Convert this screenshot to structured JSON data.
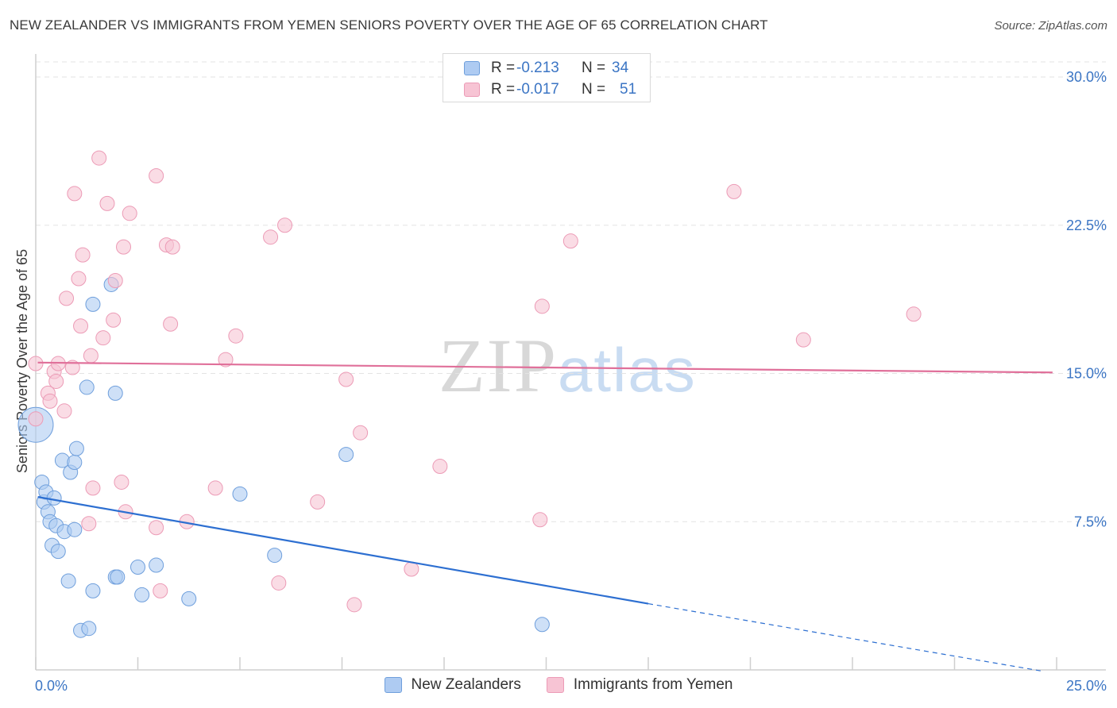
{
  "title": "NEW ZEALANDER VS IMMIGRANTS FROM YEMEN SENIORS POVERTY OVER THE AGE OF 65 CORRELATION CHART",
  "source": "Source: ZipAtlas.com",
  "watermark": {
    "zip": "ZIP",
    "atlas": "atlas"
  },
  "legend_top": {
    "rows": [
      {
        "r_label": "R =",
        "r_value": "-0.213",
        "n_label": "N =",
        "n_value": "34",
        "color": "#aecbf2"
      },
      {
        "r_label": "R =",
        "r_value": "-0.017",
        "n_label": "N =",
        "n_value": "51",
        "color": "#f7c4d4"
      }
    ]
  },
  "legend_bottom": [
    {
      "label": "New Zealanders",
      "color": "#aecbf2"
    },
    {
      "label": "Immigrants from Yemen",
      "color": "#f7c4d4"
    }
  ],
  "chart_data": {
    "type": "scatter",
    "title": "NEW ZEALANDER VS IMMIGRANTS FROM YEMEN SENIORS POVERTY OVER THE AGE OF 65 CORRELATION CHART",
    "xlabel": "",
    "ylabel": "Seniors Poverty Over the Age of 65",
    "xlim": [
      0,
      25
    ],
    "ylim": [
      0,
      30
    ],
    "x_tick_labels": [
      "0.0%",
      "25.0%"
    ],
    "y_tick_labels": [
      "7.5%",
      "15.0%",
      "22.5%",
      "30.0%"
    ],
    "y_ticks": [
      7.5,
      15,
      22.5,
      30
    ],
    "series": [
      {
        "name": "New Zealanders",
        "color": "#aecbf2",
        "stroke": "#6f9fdc",
        "line_color": "#2d6fd1",
        "trend": {
          "x0": 0.05,
          "y0": 8.75,
          "x1": 15.0,
          "y1": 3.35,
          "dash_to_x": 24.7,
          "dash_to_y": -0.08
        },
        "points": [
          [
            0.0,
            12.4,
            22
          ],
          [
            0.15,
            9.5,
            9
          ],
          [
            0.2,
            8.5,
            9
          ],
          [
            0.25,
            9.0,
            9
          ],
          [
            0.3,
            8.0,
            9
          ],
          [
            0.35,
            7.5,
            9
          ],
          [
            0.4,
            6.3,
            9
          ],
          [
            0.45,
            8.7,
            9
          ],
          [
            0.5,
            7.3,
            9
          ],
          [
            0.55,
            6.0,
            9
          ],
          [
            0.65,
            10.6,
            9
          ],
          [
            0.7,
            7.0,
            9
          ],
          [
            0.8,
            4.5,
            9
          ],
          [
            0.85,
            10.0,
            9
          ],
          [
            0.95,
            7.1,
            9
          ],
          [
            0.95,
            10.5,
            9
          ],
          [
            1.0,
            11.2,
            9
          ],
          [
            1.1,
            2.0,
            9
          ],
          [
            1.25,
            14.3,
            9
          ],
          [
            1.3,
            2.1,
            9
          ],
          [
            1.4,
            4.0,
            9
          ],
          [
            1.4,
            18.5,
            9
          ],
          [
            1.85,
            19.5,
            9
          ],
          [
            1.95,
            4.7,
            9
          ],
          [
            1.95,
            14.0,
            9
          ],
          [
            2.0,
            4.7,
            9
          ],
          [
            2.5,
            5.2,
            9
          ],
          [
            2.6,
            3.8,
            9
          ],
          [
            2.95,
            5.3,
            9
          ],
          [
            3.75,
            3.6,
            9
          ],
          [
            5.0,
            8.9,
            9
          ],
          [
            5.85,
            5.8,
            9
          ],
          [
            7.6,
            10.9,
            9
          ],
          [
            12.4,
            2.3,
            9
          ]
        ]
      },
      {
        "name": "Immigrants from Yemen",
        "color": "#f7c4d4",
        "stroke": "#ec9bb6",
        "line_color": "#e0709a",
        "trend": {
          "x0": 0.05,
          "y0": 15.55,
          "x1": 24.9,
          "y1": 15.05
        },
        "points": [
          [
            0.0,
            15.5,
            9
          ],
          [
            0.0,
            12.7,
            9
          ],
          [
            0.3,
            14.0,
            9
          ],
          [
            0.35,
            13.6,
            9
          ],
          [
            0.45,
            15.1,
            9
          ],
          [
            0.5,
            14.6,
            9
          ],
          [
            0.55,
            15.5,
            9
          ],
          [
            0.7,
            13.1,
            9
          ],
          [
            0.75,
            18.8,
            9
          ],
          [
            0.9,
            15.3,
            9
          ],
          [
            0.95,
            24.1,
            9
          ],
          [
            1.05,
            19.8,
            9
          ],
          [
            1.1,
            17.4,
            9
          ],
          [
            1.15,
            21.0,
            9
          ],
          [
            1.35,
            15.9,
            9
          ],
          [
            1.3,
            7.4,
            9
          ],
          [
            1.4,
            9.2,
            9
          ],
          [
            1.55,
            25.9,
            9
          ],
          [
            1.65,
            16.8,
            9
          ],
          [
            1.75,
            23.6,
            9
          ],
          [
            1.9,
            17.7,
            9
          ],
          [
            1.95,
            19.7,
            9
          ],
          [
            2.1,
            9.5,
            9
          ],
          [
            2.15,
            21.4,
            9
          ],
          [
            2.2,
            8.0,
            9
          ],
          [
            2.3,
            23.1,
            9
          ],
          [
            2.95,
            25.0,
            9
          ],
          [
            2.95,
            7.2,
            9
          ],
          [
            3.05,
            4.0,
            9
          ],
          [
            3.2,
            21.5,
            9
          ],
          [
            3.35,
            21.4,
            9
          ],
          [
            3.3,
            17.5,
            9
          ],
          [
            3.7,
            7.5,
            9
          ],
          [
            4.4,
            9.2,
            9
          ],
          [
            4.65,
            15.7,
            9
          ],
          [
            4.9,
            16.9,
            9
          ],
          [
            5.75,
            21.9,
            9
          ],
          [
            5.95,
            4.4,
            9
          ],
          [
            6.1,
            22.5,
            9
          ],
          [
            6.9,
            8.5,
            9
          ],
          [
            7.6,
            14.7,
            9
          ],
          [
            7.8,
            3.3,
            9
          ],
          [
            7.95,
            12.0,
            9
          ],
          [
            9.2,
            5.1,
            9
          ],
          [
            9.9,
            10.3,
            9
          ],
          [
            12.35,
            7.6,
            9
          ],
          [
            12.4,
            18.4,
            9
          ],
          [
            13.1,
            21.7,
            9
          ],
          [
            17.1,
            24.2,
            9
          ],
          [
            18.8,
            16.7,
            9
          ],
          [
            21.5,
            18.0,
            9
          ]
        ]
      }
    ],
    "grid": true,
    "legend": "top-center"
  }
}
